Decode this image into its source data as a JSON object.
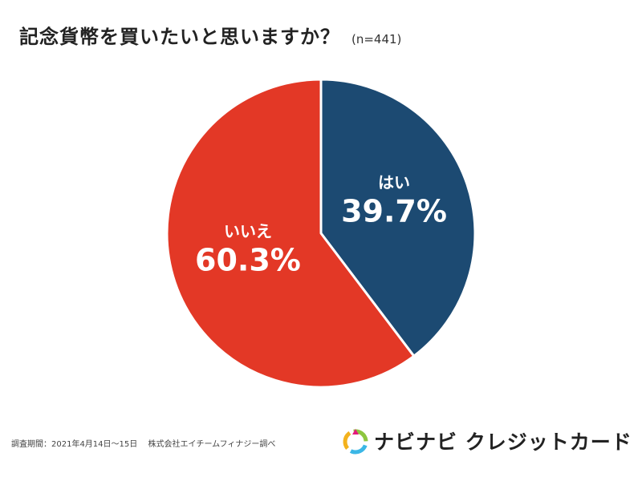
{
  "title": "記念貨幣を買いたいと思いますか？",
  "sample_size": "(n=441)",
  "chart_data": {
    "type": "pie",
    "title": "記念貨幣を買いたいと思いますか？",
    "slices": [
      {
        "label": "はい",
        "value": 39.7,
        "display": "39.7%",
        "color": "#1c4a72"
      },
      {
        "label": "いいえ",
        "value": 60.3,
        "display": "60.3%",
        "color": "#e33826"
      }
    ],
    "start": "top",
    "direction": "clockwise"
  },
  "footnote": {
    "period": "調査期間：2021年4月14日〜15日",
    "source": "株式会社エイチームフィナジー調べ"
  },
  "brand": {
    "name": "ナビナビ クレジットカード",
    "logo_icon": "navinavi-logo-icon"
  }
}
